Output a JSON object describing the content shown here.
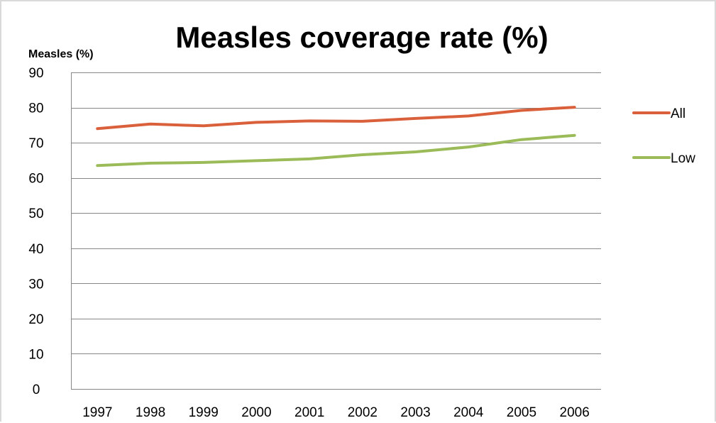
{
  "chart_data": {
    "type": "line",
    "title": "Measles coverage rate (%)",
    "ylabel": "Measles (%)",
    "xlabel": "",
    "categories": [
      "1997",
      "1998",
      "1999",
      "2000",
      "2001",
      "2002",
      "2003",
      "2004",
      "2005",
      "2006"
    ],
    "series": [
      {
        "name": "All",
        "color": "#d9603b",
        "values": [
          74,
          75.3,
          74.8,
          75.8,
          76.2,
          76.1,
          76.9,
          77.6,
          79.2,
          80.1
        ]
      },
      {
        "name": "Low",
        "color": "#9bbb59",
        "values": [
          63.5,
          64.2,
          64.4,
          64.9,
          65.4,
          66.6,
          67.4,
          68.8,
          70.9,
          72.1
        ]
      }
    ],
    "ylim": [
      0,
      90
    ],
    "yticks": [
      0,
      10,
      20,
      30,
      40,
      50,
      60,
      70,
      80,
      90
    ],
    "grid": true,
    "legend_position": "right",
    "gridline_color": "#868686",
    "axis_color": "#868686"
  }
}
